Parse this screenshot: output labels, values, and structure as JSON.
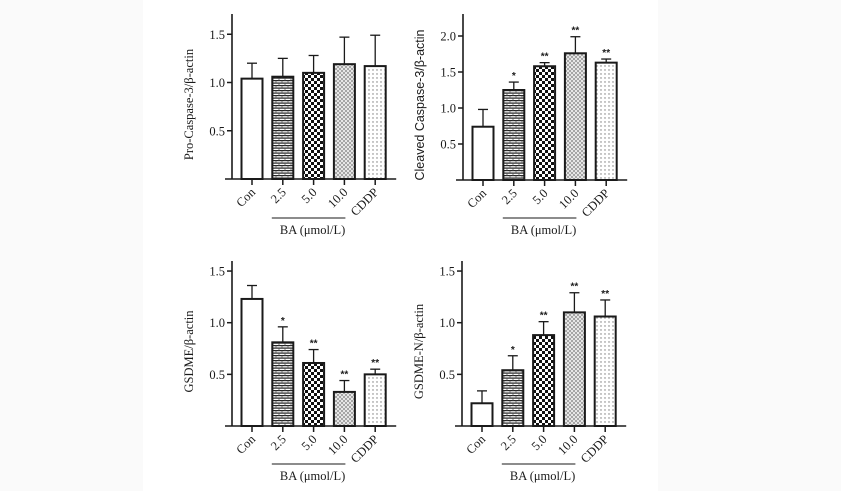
{
  "chart_data": [
    {
      "type": "bar",
      "title": "",
      "ylabel": "Pro-Caspase-3/β-actin",
      "ylabel_font": "serif",
      "xlabel": "",
      "group_label": "BA (μmol/L)",
      "categories": [
        "Con",
        "2.5",
        "5.0",
        "10.0",
        "CDDP"
      ],
      "values": [
        1.04,
        1.06,
        1.1,
        1.19,
        1.17
      ],
      "error_upper": [
        1.2,
        1.25,
        1.28,
        1.47,
        1.49
      ],
      "significance": [
        "",
        "",
        "",
        "",
        ""
      ],
      "patterns": [
        "none",
        "brick",
        "checker",
        "dense-dots",
        "sparse-dots"
      ],
      "yticks": [
        0.5,
        1.0,
        1.5
      ],
      "ytick_labels": [
        "0.5",
        "1.0",
        "1.5"
      ],
      "ylim": [
        0,
        1.7
      ],
      "grid": false
    },
    {
      "type": "bar",
      "title": "",
      "ylabel": "Cleaved Caspase-3/β-actin",
      "ylabel_font": "sans",
      "xlabel": "",
      "group_label": "BA (μmol/L)",
      "categories": [
        "Con",
        "2.5",
        "5.0",
        "10.0",
        "CDDP"
      ],
      "values": [
        0.74,
        1.25,
        1.58,
        1.76,
        1.63
      ],
      "error_upper": [
        0.98,
        1.36,
        1.63,
        1.99,
        1.68
      ],
      "significance": [
        "",
        "*",
        "**",
        "**",
        "**"
      ],
      "patterns": [
        "none",
        "brick",
        "checker",
        "dense-dots",
        "sparse-dots"
      ],
      "yticks": [
        0.5,
        1.0,
        1.5,
        2.0
      ],
      "ytick_labels": [
        "0.5",
        "1.0",
        "1.5",
        "2.0"
      ],
      "ylim": [
        0,
        2.3
      ],
      "grid": false
    },
    {
      "type": "bar",
      "title": "",
      "ylabel": "GSDME/β-actin",
      "ylabel_font": "serif",
      "xlabel": "",
      "group_label": "BA (μmol/L)",
      "categories": [
        "Con",
        "2.5",
        "5.0",
        "10.0",
        "CDDP"
      ],
      "values": [
        1.23,
        0.81,
        0.61,
        0.33,
        0.5
      ],
      "error_upper": [
        1.36,
        0.96,
        0.74,
        0.44,
        0.55
      ],
      "significance": [
        "",
        "*",
        "**",
        "**",
        "**"
      ],
      "patterns": [
        "none",
        "brick",
        "checker",
        "dense-dots",
        "sparse-dots"
      ],
      "yticks": [
        0.5,
        1.0,
        1.5
      ],
      "ytick_labels": [
        "0.5",
        "1.0",
        "1.5"
      ],
      "ylim": [
        0,
        1.6
      ],
      "grid": false
    },
    {
      "type": "bar",
      "title": "",
      "ylabel": "GSDME-N/β-actin",
      "ylabel_font": "serif",
      "xlabel": "",
      "group_label": "BA (μmol/L)",
      "categories": [
        "Con",
        "2.5",
        "5.0",
        "10.0",
        "CDDP"
      ],
      "values": [
        0.22,
        0.54,
        0.88,
        1.1,
        1.06
      ],
      "error_upper": [
        0.34,
        0.68,
        1.01,
        1.29,
        1.22
      ],
      "significance": [
        "",
        "*",
        "**",
        "**",
        "**"
      ],
      "patterns": [
        "none",
        "brick",
        "checker",
        "dense-dots",
        "sparse-dots"
      ],
      "yticks": [
        0.5,
        1.0,
        1.5
      ],
      "ytick_labels": [
        "0.5",
        "1.0",
        "1.5"
      ],
      "ylim": [
        0,
        1.6
      ],
      "grid": false
    }
  ],
  "colors": {
    "ink": "#1a1a1a",
    "bar_fill": "#ffffff",
    "page_bg": "#fafafa",
    "figure_bg": "#ffffff"
  }
}
